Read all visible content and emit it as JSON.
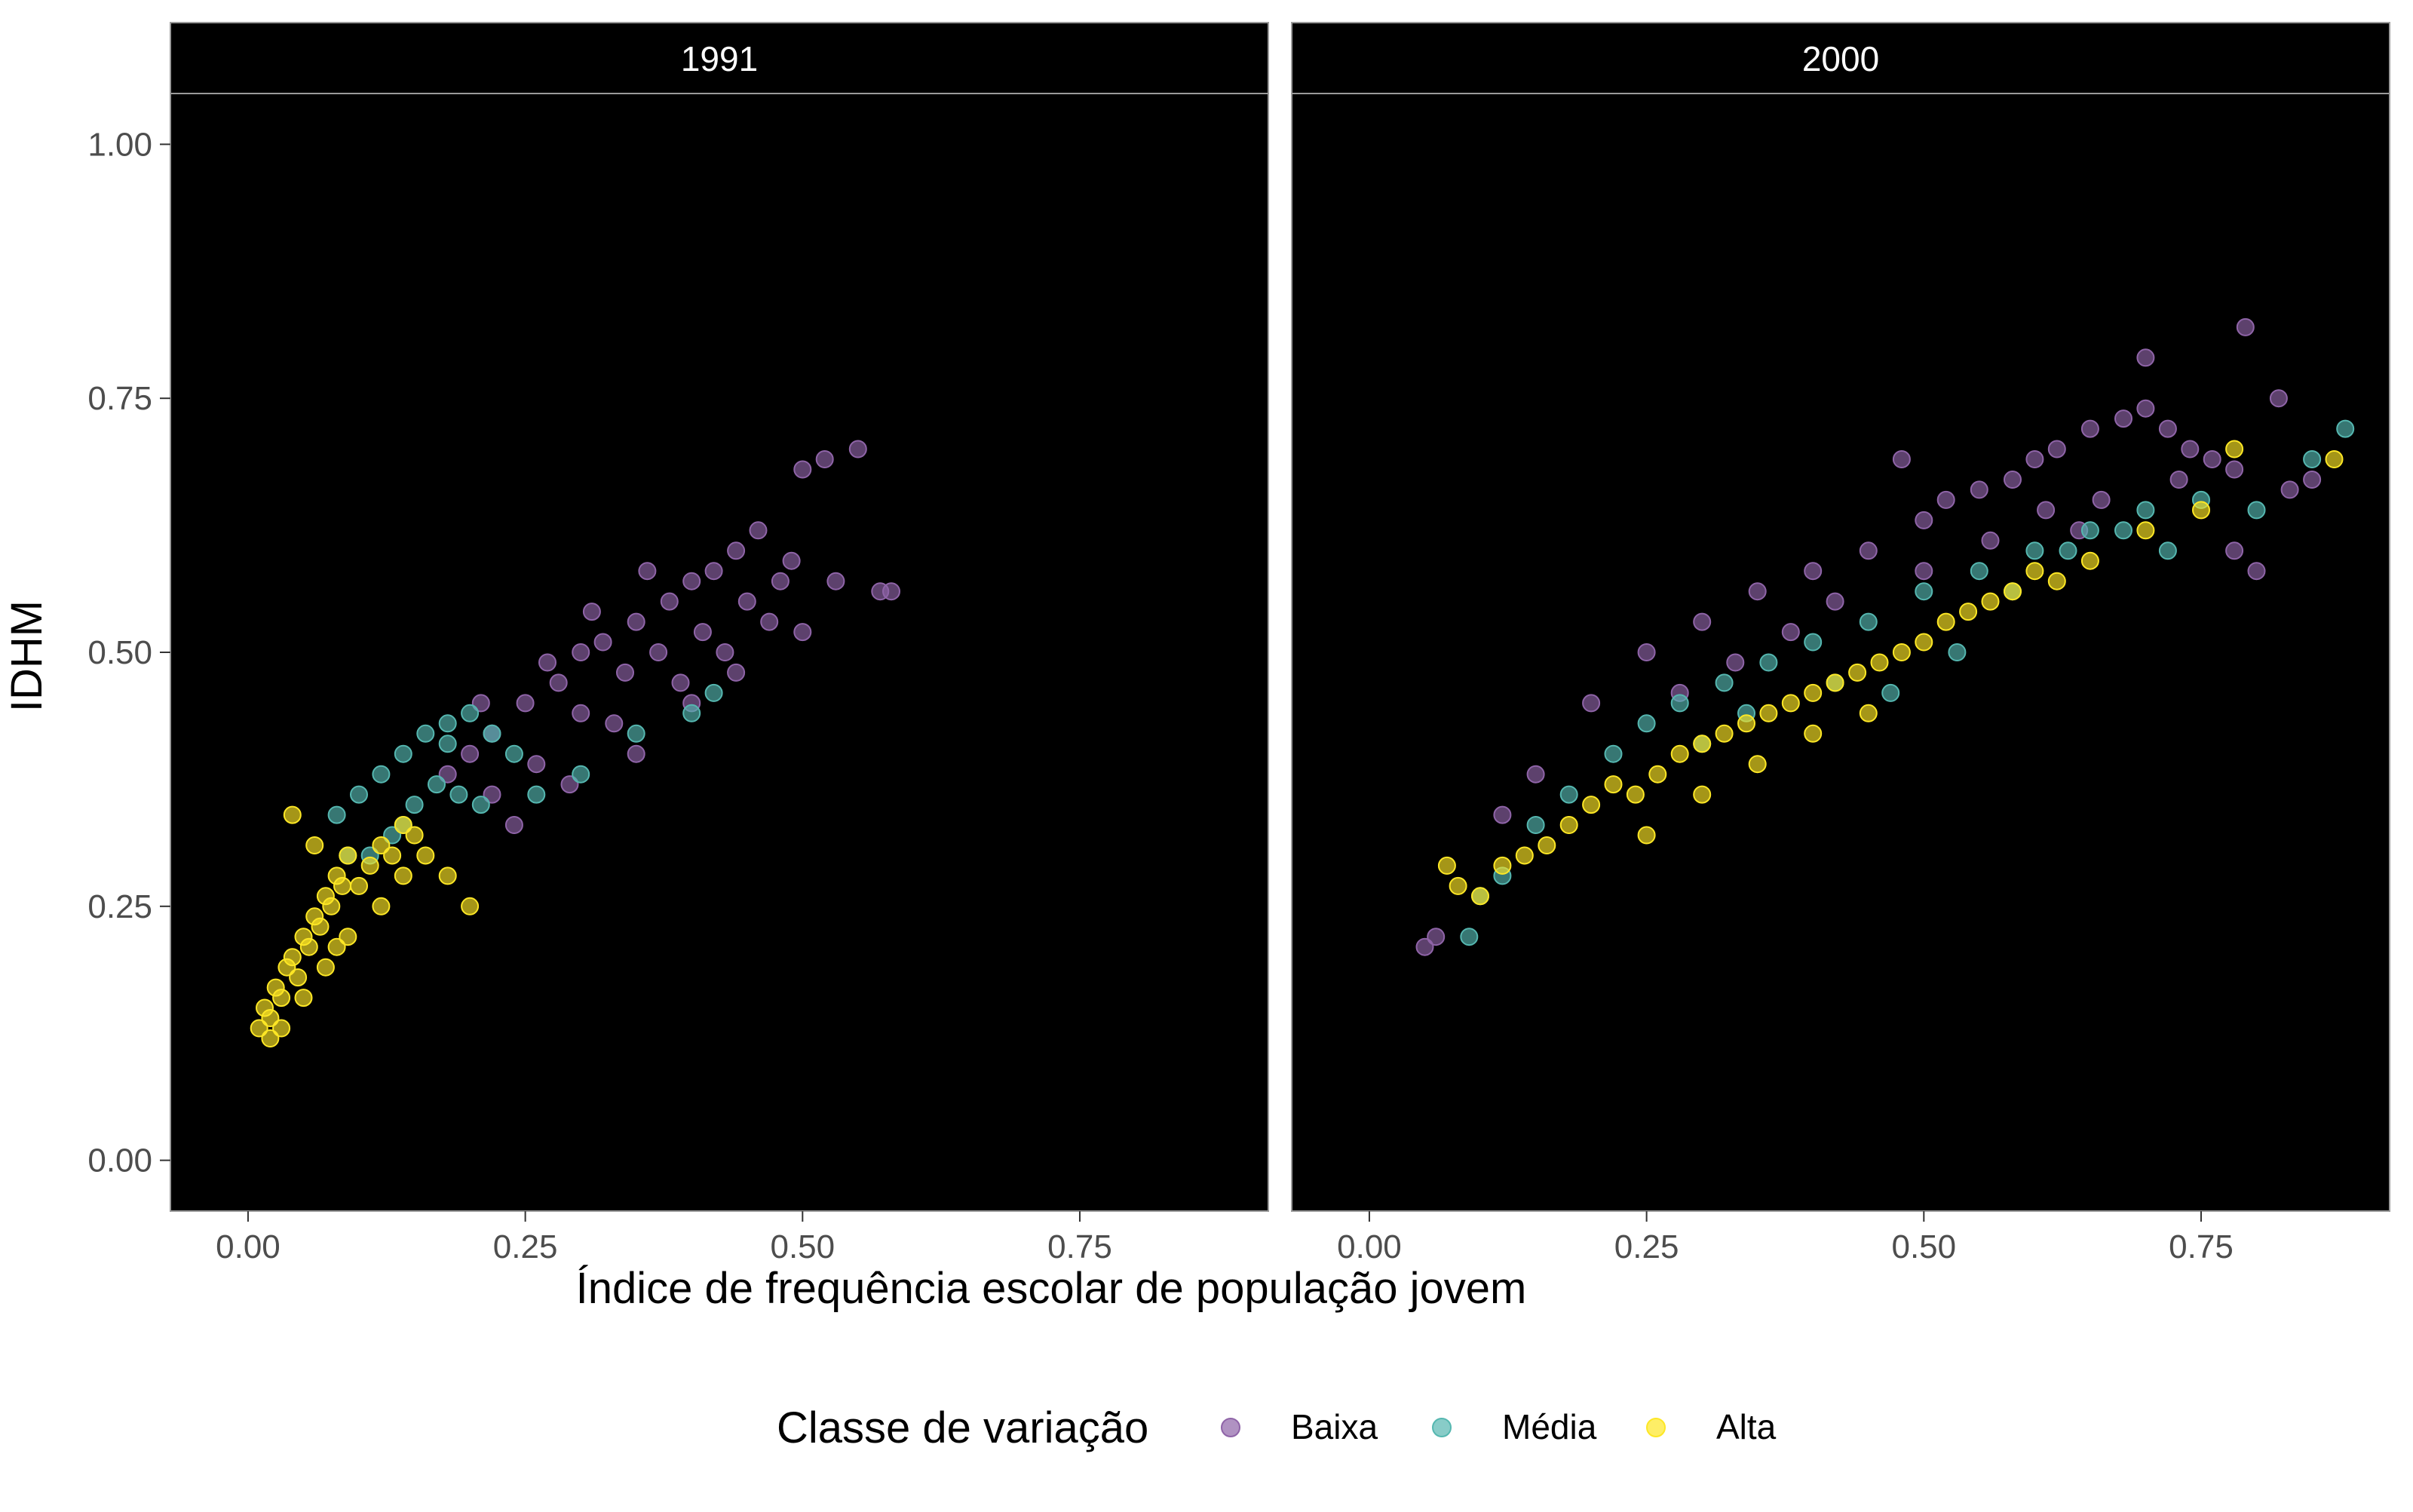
{
  "chart_data": {
    "type": "scatter",
    "facet_variable": "year",
    "panels": [
      {
        "label": "1991",
        "series": [
          {
            "name": "Baixa",
            "x": [
              0.2,
              0.22,
              0.25,
              0.28,
              0.3,
              0.32,
              0.35,
              0.38,
              0.4,
              0.42,
              0.44,
              0.46,
              0.3,
              0.34,
              0.37,
              0.41,
              0.45,
              0.48,
              0.22,
              0.26,
              0.33,
              0.39,
              0.43,
              0.27,
              0.31,
              0.36,
              0.47,
              0.5,
              0.52,
              0.55,
              0.57,
              0.58,
              0.5,
              0.53,
              0.49,
              0.24,
              0.29,
              0.35,
              0.4,
              0.44,
              0.18,
              0.21
            ],
            "y": [
              0.4,
              0.42,
              0.45,
              0.47,
              0.5,
              0.51,
              0.53,
              0.55,
              0.57,
              0.58,
              0.6,
              0.62,
              0.44,
              0.48,
              0.5,
              0.52,
              0.55,
              0.57,
              0.36,
              0.39,
              0.43,
              0.47,
              0.5,
              0.49,
              0.54,
              0.58,
              0.53,
              0.68,
              0.69,
              0.7,
              0.56,
              0.56,
              0.52,
              0.57,
              0.59,
              0.33,
              0.37,
              0.4,
              0.45,
              0.48,
              0.38,
              0.45
            ]
          },
          {
            "name": "Média",
            "x": [
              0.08,
              0.1,
              0.12,
              0.14,
              0.16,
              0.18,
              0.2,
              0.22,
              0.24,
              0.11,
              0.13,
              0.15,
              0.17,
              0.19,
              0.21,
              0.26,
              0.3,
              0.35,
              0.4,
              0.42,
              0.09,
              0.14,
              0.18
            ],
            "y": [
              0.34,
              0.36,
              0.38,
              0.4,
              0.42,
              0.43,
              0.44,
              0.42,
              0.4,
              0.3,
              0.32,
              0.35,
              0.37,
              0.36,
              0.35,
              0.36,
              0.38,
              0.42,
              0.44,
              0.46,
              0.3,
              0.33,
              0.41
            ]
          },
          {
            "name": "Alta",
            "x": [
              0.01,
              0.015,
              0.02,
              0.025,
              0.03,
              0.035,
              0.04,
              0.045,
              0.05,
              0.055,
              0.06,
              0.065,
              0.07,
              0.075,
              0.08,
              0.085,
              0.09,
              0.1,
              0.11,
              0.12,
              0.13,
              0.14,
              0.15,
              0.16,
              0.18,
              0.2,
              0.02,
              0.03,
              0.05,
              0.07,
              0.09,
              0.04,
              0.06,
              0.08,
              0.12,
              0.14
            ],
            "y": [
              0.13,
              0.15,
              0.14,
              0.17,
              0.16,
              0.19,
              0.2,
              0.18,
              0.22,
              0.21,
              0.24,
              0.23,
              0.26,
              0.25,
              0.28,
              0.27,
              0.3,
              0.27,
              0.29,
              0.31,
              0.3,
              0.33,
              0.32,
              0.3,
              0.28,
              0.25,
              0.12,
              0.13,
              0.16,
              0.19,
              0.22,
              0.34,
              0.31,
              0.21,
              0.25,
              0.28
            ]
          }
        ]
      },
      {
        "label": "2000",
        "series": [
          {
            "name": "Baixa",
            "x": [
              0.05,
              0.06,
              0.12,
              0.15,
              0.2,
              0.25,
              0.3,
              0.35,
              0.4,
              0.45,
              0.5,
              0.52,
              0.55,
              0.58,
              0.6,
              0.62,
              0.65,
              0.68,
              0.7,
              0.72,
              0.74,
              0.76,
              0.78,
              0.79,
              0.8,
              0.82,
              0.85,
              0.48,
              0.42,
              0.38,
              0.33,
              0.28,
              0.64,
              0.66,
              0.7,
              0.73,
              0.5,
              0.56,
              0.61,
              0.78,
              0.83
            ],
            "y": [
              0.21,
              0.22,
              0.34,
              0.38,
              0.45,
              0.5,
              0.53,
              0.56,
              0.58,
              0.6,
              0.63,
              0.65,
              0.66,
              0.67,
              0.69,
              0.7,
              0.72,
              0.73,
              0.74,
              0.72,
              0.7,
              0.69,
              0.68,
              0.82,
              0.58,
              0.75,
              0.67,
              0.69,
              0.55,
              0.52,
              0.49,
              0.46,
              0.62,
              0.65,
              0.79,
              0.67,
              0.58,
              0.61,
              0.64,
              0.6,
              0.66
            ]
          },
          {
            "name": "Média",
            "x": [
              0.09,
              0.1,
              0.12,
              0.15,
              0.18,
              0.22,
              0.25,
              0.28,
              0.32,
              0.36,
              0.4,
              0.45,
              0.5,
              0.55,
              0.6,
              0.65,
              0.7,
              0.75,
              0.8,
              0.85,
              0.88,
              0.3,
              0.34,
              0.42,
              0.47,
              0.53,
              0.58,
              0.63,
              0.68,
              0.72
            ],
            "y": [
              0.22,
              0.26,
              0.28,
              0.33,
              0.36,
              0.4,
              0.43,
              0.45,
              0.47,
              0.49,
              0.51,
              0.53,
              0.56,
              0.58,
              0.6,
              0.62,
              0.64,
              0.65,
              0.64,
              0.69,
              0.72,
              0.41,
              0.44,
              0.47,
              0.46,
              0.5,
              0.56,
              0.6,
              0.62,
              0.6
            ]
          },
          {
            "name": "Alta",
            "x": [
              0.07,
              0.08,
              0.1,
              0.12,
              0.14,
              0.16,
              0.18,
              0.2,
              0.22,
              0.24,
              0.26,
              0.28,
              0.3,
              0.32,
              0.34,
              0.36,
              0.38,
              0.4,
              0.42,
              0.44,
              0.46,
              0.48,
              0.5,
              0.52,
              0.54,
              0.56,
              0.58,
              0.6,
              0.62,
              0.65,
              0.7,
              0.75,
              0.87,
              0.78,
              0.25,
              0.3,
              0.35,
              0.4,
              0.45
            ],
            "y": [
              0.29,
              0.27,
              0.26,
              0.29,
              0.3,
              0.31,
              0.33,
              0.35,
              0.37,
              0.36,
              0.38,
              0.4,
              0.41,
              0.42,
              0.43,
              0.44,
              0.45,
              0.46,
              0.47,
              0.48,
              0.49,
              0.5,
              0.51,
              0.53,
              0.54,
              0.55,
              0.56,
              0.58,
              0.57,
              0.59,
              0.62,
              0.64,
              0.69,
              0.7,
              0.32,
              0.36,
              0.39,
              0.42,
              0.44
            ]
          }
        ]
      }
    ],
    "xlabel": "Índice de frequência escolar de população jovem",
    "ylabel": "IDHM",
    "xlim": [
      -0.07,
      0.92
    ],
    "ylim": [
      -0.05,
      1.05
    ],
    "x_ticks": [
      "0.00",
      "0.25",
      "0.50",
      "0.75"
    ],
    "y_ticks": [
      "0.00",
      "0.25",
      "0.50",
      "0.75",
      "1.00"
    ],
    "legend": {
      "title": "Classe de variação",
      "position": "bottom",
      "items": [
        {
          "name": "Baixa",
          "color": "#8f64a8"
        },
        {
          "name": "Média",
          "color": "#55b7b0"
        },
        {
          "name": "Alta",
          "color": "#fde725"
        }
      ]
    },
    "panel_background": "#000000",
    "strip_background": "#000000",
    "grid": false
  }
}
